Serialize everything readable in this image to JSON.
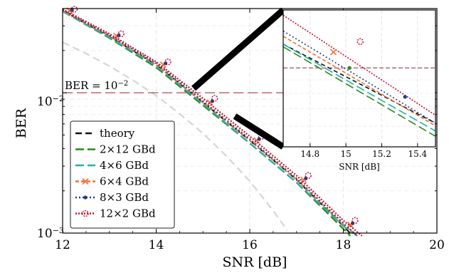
{
  "chart_data": [
    {
      "type": "line",
      "title": "",
      "xlabel": "SNR [dB]",
      "ylabel": "BER",
      "xlim": [
        12,
        20
      ],
      "ylim_log10": [
        -3,
        -1.4
      ],
      "y_scale": "log",
      "x_ticks": [
        {
          "value": 12,
          "label": "12"
        },
        {
          "value": 14,
          "label": "14"
        },
        {
          "value": 16,
          "label": "16"
        },
        {
          "value": 18,
          "label": "18"
        },
        {
          "value": 20,
          "label": "20"
        }
      ],
      "y_ticks": [
        {
          "log10": -2,
          "label": "10",
          "exp": "−2"
        },
        {
          "log10": -3,
          "label": "10",
          "exp": "−3"
        }
      ],
      "grid": true,
      "legend_position": "bottom-left",
      "annotation": {
        "text": "BER = 10",
        "exp": "−2",
        "y_log10": -2,
        "color": "#b04a56"
      },
      "faint_curve": {
        "color": "#d8d8d8",
        "x": [
          12,
          12.5,
          13,
          13.5,
          14,
          14.5,
          15,
          15.5,
          16,
          16.5,
          16.8
        ],
        "y_log10": [
          -1.64,
          -1.72,
          -1.81,
          -1.91,
          -2.02,
          -2.15,
          -2.29,
          -2.45,
          -2.63,
          -2.84,
          -2.98
        ]
      },
      "series": [
        {
          "name": "theory",
          "color": "#111111",
          "dash": "9,5",
          "marker": "none",
          "legend_label": "theory",
          "x": [
            12,
            13,
            14,
            15,
            16,
            17,
            18,
            18.2
          ],
          "y_log10": [
            -1.415,
            -1.6,
            -1.8,
            -2.07,
            -2.34,
            -2.62,
            -2.95,
            -3.02
          ]
        },
        {
          "name": "2x12",
          "color": "#2a8a1e",
          "dash": "12,5",
          "marker": "none",
          "legend_label": "2×12 GBd",
          "x": [
            12,
            13,
            14,
            15,
            16,
            17,
            18,
            18.15
          ],
          "y_log10": [
            -1.42,
            -1.61,
            -1.82,
            -2.09,
            -2.36,
            -2.64,
            -2.97,
            -3.02
          ]
        },
        {
          "name": "4x6",
          "color": "#1fb1ad",
          "dash": "12,5",
          "marker": "none",
          "legend_label": "4×6 GBd",
          "x": [
            12,
            13,
            14,
            15,
            16,
            17,
            18,
            18.3
          ],
          "y_log10": [
            -1.42,
            -1.605,
            -1.81,
            -2.08,
            -2.36,
            -2.64,
            -2.95,
            -3.02
          ]
        },
        {
          "name": "6x4",
          "color": "#f07030",
          "dash": "5,3",
          "marker": "x",
          "legend_label": "6×4 GBd",
          "x": [
            12,
            13,
            14,
            15,
            16,
            17,
            18,
            18.3
          ],
          "y_log10": [
            -1.415,
            -1.595,
            -1.8,
            -2.07,
            -2.34,
            -2.62,
            -2.94,
            -3.02
          ]
        },
        {
          "name": "8x3",
          "color": "#1c3d8a",
          "dash": "2,3",
          "marker": "dot",
          "legend_label": "8×3 GBd",
          "x": [
            12,
            13,
            14,
            15,
            16,
            17,
            18,
            18.3
          ],
          "y_log10": [
            -1.41,
            -1.59,
            -1.79,
            -2.06,
            -2.33,
            -2.61,
            -2.93,
            -3.02
          ]
        },
        {
          "name": "12x2",
          "color": "#c8102e",
          "dash": "2,2",
          "marker": "star",
          "legend_label": "12×2 GBd",
          "x": [
            12,
            13,
            14,
            15,
            16,
            17,
            18,
            18.4
          ],
          "y_log10": [
            -1.405,
            -1.58,
            -1.78,
            -2.04,
            -2.31,
            -2.59,
            -2.91,
            -3.02
          ]
        }
      ],
      "markers_x": [
        12.0,
        13.0,
        14.0,
        15.0,
        16.0,
        17.0,
        18.0
      ]
    },
    {
      "type": "line",
      "title": "",
      "role": "inset",
      "xlabel": "SNR [dB]",
      "ylabel": "",
      "xlim": [
        14.65,
        15.5
      ],
      "ylim_log10": [
        -2.3,
        -1.78
      ],
      "y_scale": "log",
      "x_ticks": [
        {
          "value": 14.8,
          "label": "14.8"
        },
        {
          "value": 15.0,
          "label": "15"
        },
        {
          "value": 15.2,
          "label": "15.2"
        },
        {
          "value": 15.4,
          "label": "15.4"
        }
      ],
      "grid": true,
      "annotation_y_log10": -2,
      "series": [
        {
          "name": "theory",
          "color": "#111111",
          "x": [
            14.65,
            15.5
          ],
          "y_log10": [
            -1.91,
            -2.21
          ]
        },
        {
          "name": "2x12",
          "color": "#2a8a1e",
          "x": [
            14.65,
            15.5
          ],
          "y_log10": [
            -1.92,
            -2.26
          ]
        },
        {
          "name": "4x6",
          "color": "#1fb1ad",
          "x": [
            14.65,
            15.5
          ],
          "y_log10": [
            -1.91,
            -2.24
          ]
        },
        {
          "name": "6x4",
          "color": "#f07030",
          "x": [
            14.65,
            15.5
          ],
          "y_log10": [
            -1.88,
            -2.22
          ]
        },
        {
          "name": "8x3",
          "color": "#1c3d8a",
          "x": [
            14.65,
            15.5
          ],
          "y_log10": [
            -1.86,
            -2.21
          ]
        },
        {
          "name": "12x2",
          "color": "#c8102e",
          "x": [
            14.65,
            15.5
          ],
          "y_log10": [
            -1.8,
            -2.18
          ]
        }
      ],
      "markers": [
        {
          "series": "12x2",
          "x": 15.08,
          "y_log10": -1.9
        },
        {
          "series": "6x4",
          "x": 14.93,
          "y_log10": -1.94
        },
        {
          "series": "8x3",
          "x": 15.33,
          "y_log10": -2.11
        },
        {
          "series": "2x12",
          "x": 15.02,
          "y_log10": -2.0
        }
      ]
    }
  ]
}
